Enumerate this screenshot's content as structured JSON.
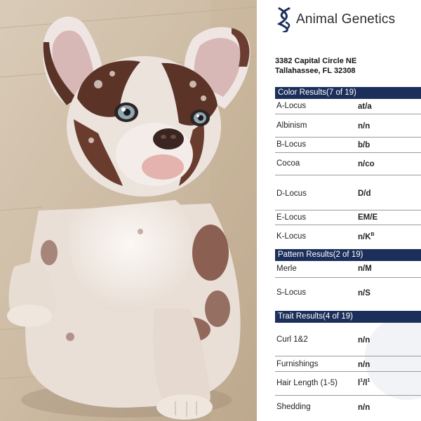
{
  "brand": {
    "name": "Animal Genetics",
    "logo_icon": "dna-helix-icon"
  },
  "address": {
    "line1": "3382 Capital Circle NE",
    "line2": "Tallahassee, FL 32308"
  },
  "colors": {
    "section_bar": "#1c2f5b",
    "divider": "#9a9a9a",
    "logo": "#1c2f5b"
  },
  "photo": {
    "subject": "puppy"
  },
  "sections": [
    {
      "title": "Color Results(7 of 19)",
      "rows": [
        {
          "label": "A-Locus",
          "value": "at/a"
        },
        {
          "label": "Albinism",
          "value": "n/n"
        },
        {
          "label": "B-Locus",
          "value": "b/b"
        },
        {
          "label": "Cocoa",
          "value": "n/co"
        },
        {
          "label": "D-Locus",
          "value": "D/d"
        },
        {
          "label": "E-Locus",
          "value": "EM/E"
        },
        {
          "label": "K-Locus",
          "value": "n/K",
          "value_sup": "B"
        }
      ]
    },
    {
      "title": "Pattern Results(2 of 19)",
      "rows": [
        {
          "label": "Merle",
          "value": "n/M"
        },
        {
          "label": "S-Locus",
          "value": "n/S"
        }
      ]
    },
    {
      "title": "Trait Results(4 of 19)",
      "rows": [
        {
          "label": "Curl 1&2",
          "value": "n/n"
        },
        {
          "label": "Furnishings",
          "value": "n/n"
        },
        {
          "label": "Hair Length (1-5)",
          "value": "l",
          "value_sup": "1",
          "value_mid": "/l",
          "value_sup2": "1"
        },
        {
          "label": "Shedding",
          "value": "n/n"
        }
      ]
    }
  ]
}
